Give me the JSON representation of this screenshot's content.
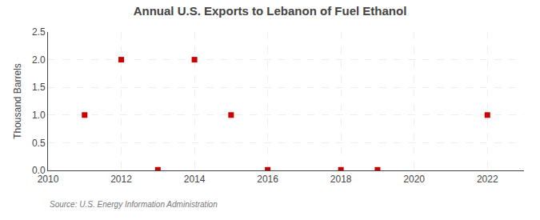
{
  "chart_data": {
    "type": "scatter",
    "title": "Annual U.S. Exports to Lebanon of Fuel Ethanol",
    "ylabel": "Thousand Barrels",
    "annotations": [
      "Source: U.S. Energy Information Administration"
    ],
    "x": [
      2011,
      2012,
      2013,
      2014,
      2015,
      2016,
      2018,
      2019,
      2022
    ],
    "values": [
      1.0,
      2.0,
      0.01,
      2.0,
      1.0,
      0.01,
      0.01,
      0.01,
      1.0
    ],
    "color": "#cc0000",
    "marker": "square",
    "xlim": [
      2010,
      2023
    ],
    "xticks": [
      2010,
      2012,
      2014,
      2016,
      2018,
      2020,
      2022
    ],
    "ylim": [
      0,
      2.5
    ],
    "yticks": [
      {
        "value": 0,
        "label": "0.0"
      },
      0.5,
      {
        "value": 1,
        "label": "1.0"
      },
      1.5,
      {
        "value": 2,
        "label": "2.0"
      },
      2.5
    ],
    "grid": true
  }
}
